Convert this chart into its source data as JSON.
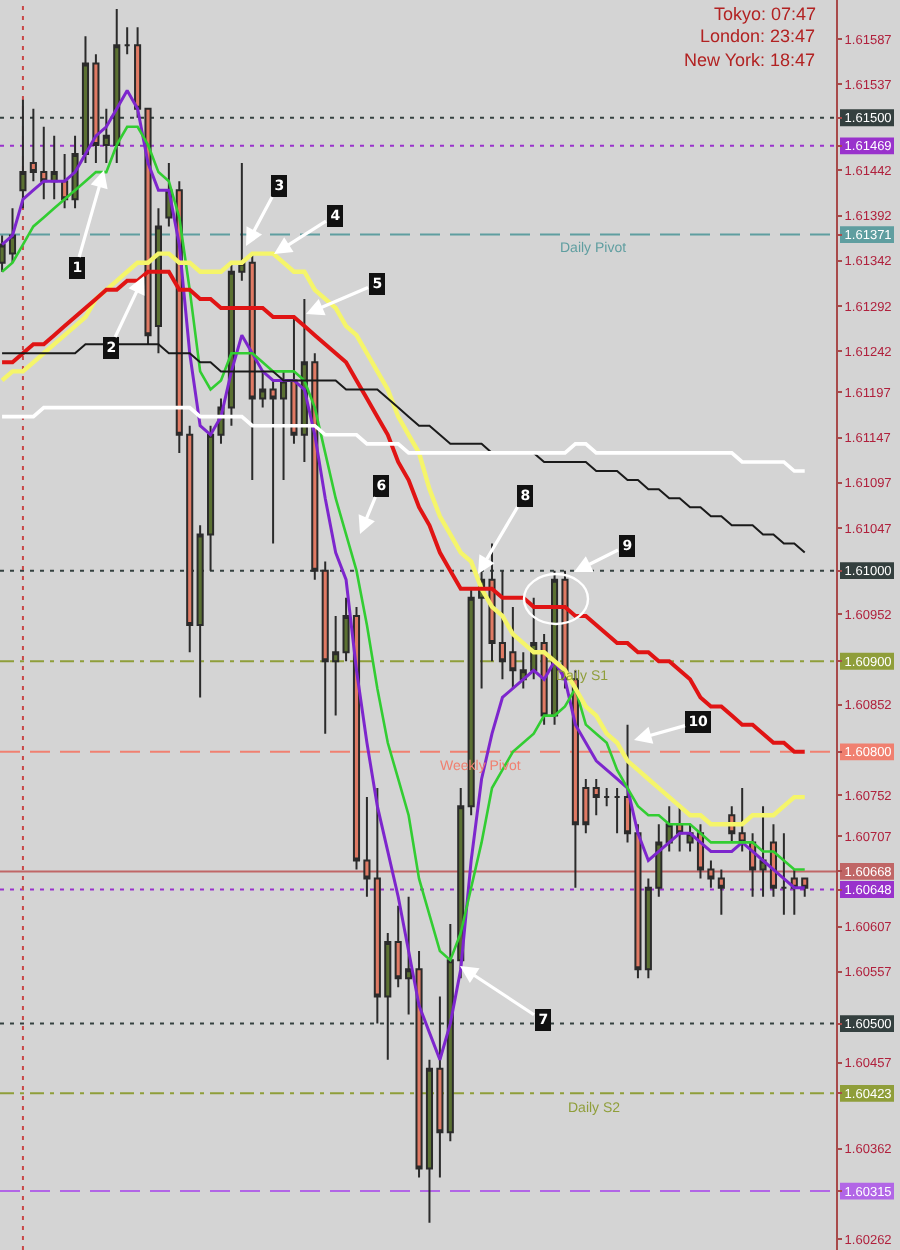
{
  "chart_data": {
    "type": "candlestick",
    "categories": [
      null,
      null,
      null,
      null,
      null,
      null,
      null,
      null,
      null,
      null,
      null,
      null,
      null,
      null,
      null,
      null,
      null,
      null,
      null,
      null,
      null,
      null,
      null,
      null,
      null,
      null,
      null,
      null,
      null,
      null,
      null,
      null,
      null,
      null,
      null,
      null,
      null,
      null,
      null,
      null,
      null,
      null,
      null,
      null,
      null,
      null,
      null,
      null,
      null,
      null,
      null,
      null,
      null,
      null,
      null,
      null,
      null,
      null,
      null,
      null,
      null,
      null,
      null,
      null,
      null,
      null,
      null,
      null,
      null,
      null,
      null,
      null,
      null,
      null,
      null,
      null,
      null,
      null
    ],
    "ohlc": [
      [
        1.6134,
        1.6137,
        1.6133,
        1.6136
      ],
      [
        1.6135,
        1.614,
        1.6134,
        1.6137
      ],
      [
        1.6142,
        1.6152,
        1.614,
        1.6144
      ],
      [
        1.6145,
        1.6151,
        1.6143,
        1.6144
      ],
      [
        1.6144,
        1.6149,
        1.6141,
        1.6143
      ],
      [
        1.6143,
        1.6148,
        1.6141,
        1.6144
      ],
      [
        1.6143,
        1.6146,
        1.614,
        1.6141
      ],
      [
        1.6141,
        1.6148,
        1.614,
        1.6146
      ],
      [
        1.6146,
        1.6159,
        1.6145,
        1.6156
      ],
      [
        1.6156,
        1.6157,
        1.6145,
        1.6147
      ],
      [
        1.6147,
        1.6151,
        1.6145,
        1.6148
      ],
      [
        1.6147,
        1.6162,
        1.6145,
        1.6158
      ],
      [
        1.6158,
        1.616,
        1.6157,
        1.6158
      ],
      [
        1.6158,
        1.616,
        1.615,
        1.6151
      ],
      [
        1.6151,
        1.6151,
        1.6125,
        1.6126
      ],
      [
        1.6127,
        1.614,
        1.6124,
        1.6138
      ],
      [
        1.6139,
        1.6145,
        1.6138,
        1.6142
      ],
      [
        1.6142,
        1.6143,
        1.6113,
        1.6115
      ],
      [
        1.6115,
        1.6116,
        1.6091,
        1.6094
      ],
      [
        1.6094,
        1.6105,
        1.6086,
        1.6104
      ],
      [
        1.6104,
        1.6116,
        1.61,
        1.6115
      ],
      [
        1.6115,
        1.6119,
        1.6114,
        1.6118
      ],
      [
        1.6118,
        1.6134,
        1.6116,
        1.6133
      ],
      [
        1.6133,
        1.6145,
        1.6132,
        1.6134
      ],
      [
        1.6134,
        1.6135,
        1.611,
        1.6119
      ],
      [
        1.6119,
        1.6122,
        1.6118,
        1.612
      ],
      [
        1.612,
        1.6121,
        1.6103,
        1.6119
      ],
      [
        1.6119,
        1.6122,
        1.611,
        1.6121
      ],
      [
        1.6121,
        1.6128,
        1.6114,
        1.6115
      ],
      [
        1.6115,
        1.613,
        1.6112,
        1.6123
      ],
      [
        1.6123,
        1.6124,
        1.6099,
        1.61
      ],
      [
        1.61,
        1.6101,
        1.6082,
        1.609
      ],
      [
        1.609,
        1.6095,
        1.6084,
        1.6091
      ],
      [
        1.6091,
        1.6097,
        1.609,
        1.6095
      ],
      [
        1.6095,
        1.6096,
        1.6067,
        1.6068
      ],
      [
        1.6068,
        1.6075,
        1.6064,
        1.6066
      ],
      [
        1.6066,
        1.6076,
        1.605,
        1.6053
      ],
      [
        1.6053,
        1.606,
        1.6046,
        1.6059
      ],
      [
        1.6059,
        1.6063,
        1.6054,
        1.6055
      ],
      [
        1.6055,
        1.6064,
        1.6051,
        1.6056
      ],
      [
        1.6056,
        1.6058,
        1.6033,
        1.6034
      ],
      [
        1.6034,
        1.6046,
        1.6028,
        1.6045
      ],
      [
        1.6045,
        1.6053,
        1.6033,
        1.6038
      ],
      [
        1.6038,
        1.6061,
        1.6037,
        1.6057
      ],
      [
        1.6057,
        1.6076,
        1.6055,
        1.6074
      ],
      [
        1.6074,
        1.6098,
        1.6073,
        1.6097
      ],
      [
        1.6097,
        1.61,
        1.6087,
        1.6099
      ],
      [
        1.6099,
        1.6103,
        1.609,
        1.6092
      ],
      [
        1.6092,
        1.61,
        1.6088,
        1.609
      ],
      [
        1.6091,
        1.6096,
        1.6087,
        1.6089
      ],
      [
        1.6088,
        1.6091,
        1.6087,
        1.6089
      ],
      [
        1.6089,
        1.6097,
        1.6088,
        1.6092
      ],
      [
        1.6092,
        1.6093,
        1.6083,
        1.6084
      ],
      [
        1.6084,
        1.61,
        1.6083,
        1.6099
      ],
      [
        1.6099,
        1.61,
        1.6087,
        1.6088
      ],
      [
        1.6088,
        1.6089,
        1.6065,
        1.6072
      ],
      [
        1.6076,
        1.6077,
        1.6071,
        1.6072
      ],
      [
        1.6076,
        1.6077,
        1.6073,
        1.6075
      ],
      [
        1.6075,
        1.6076,
        1.6074,
        1.6075
      ],
      [
        1.6075,
        1.6076,
        1.6071,
        1.6075
      ],
      [
        1.6075,
        1.6083,
        1.607,
        1.6071
      ],
      [
        1.6071,
        1.6072,
        1.6055,
        1.6056
      ],
      [
        1.6056,
        1.6066,
        1.6055,
        1.6065
      ],
      [
        1.6065,
        1.6072,
        1.6064,
        1.607
      ],
      [
        1.607,
        1.6074,
        1.6069,
        1.6072
      ],
      [
        1.6072,
        1.6074,
        1.6069,
        1.6071
      ],
      [
        1.607,
        1.6072,
        1.6069,
        1.6071
      ],
      [
        1.6071,
        1.6072,
        1.6066,
        1.6067
      ],
      [
        1.6067,
        1.6068,
        1.6065,
        1.6066
      ],
      [
        1.6066,
        1.6067,
        1.6062,
        1.6065
      ],
      [
        1.6073,
        1.6074,
        1.607,
        1.6071
      ],
      [
        1.6071,
        1.6076,
        1.6069,
        1.607
      ],
      [
        1.607,
        1.6071,
        1.6064,
        1.6067
      ],
      [
        1.6067,
        1.6074,
        1.6064,
        1.6068
      ],
      [
        1.607,
        1.6072,
        1.6064,
        1.6065
      ],
      [
        1.6065,
        1.6071,
        1.6062,
        1.6065
      ],
      [
        1.6066,
        1.6067,
        1.6062,
        1.6065
      ],
      [
        1.6066,
        1.6066,
        1.6064,
        1.6065
      ]
    ],
    "colors": [
      "#5b7132",
      "#5b7132",
      "#5b7132",
      "#e07a64",
      "#e07a64",
      "#5b7132",
      "#e07a64",
      "#5b7132",
      "#5b7132",
      "#e07a64",
      "#5b7132",
      "#5b7132",
      "#2b2b2b",
      "#e07a64",
      "#e07a64",
      "#5b7132",
      "#5b7132",
      "#e07a64",
      "#e07a64",
      "#5b7132",
      "#5b7132",
      "#5b7132",
      "#5b7132",
      "#5b7132",
      "#e07a64",
      "#5b7132",
      "#e07a64",
      "#5b7132",
      "#e07a64",
      "#5b7132",
      "#e07a64",
      "#e07a64",
      "#5b7132",
      "#5b7132",
      "#e07a64",
      "#e07a64",
      "#e07a64",
      "#5b7132",
      "#e07a64",
      "#5b7132",
      "#e07a64",
      "#5b7132",
      "#e07a64",
      "#5b7132",
      "#5b7132",
      "#5b7132",
      "#5b7132",
      "#e07a64",
      "#e07a64",
      "#e07a64",
      "#5b7132",
      "#5b7132",
      "#e07a64",
      "#5b7132",
      "#e07a64",
      "#e07a64",
      "#e07a64",
      "#e07a64",
      "#2b2b2b",
      "#2b2b2b",
      "#e07a64",
      "#e07a64",
      "#5b7132",
      "#5b7132",
      "#5b7132",
      "#e07a64",
      "#5b7132",
      "#e07a64",
      "#e07a64",
      "#e07a64",
      "#e07a64",
      "#e07a64",
      "#e07a64",
      "#5b7132",
      "#e07a64",
      "#2b2b2b",
      "#e07a64",
      "#e07a64"
    ],
    "series": [
      {
        "type": "line",
        "color": "#7d26cd",
        "values": [
          1.6136,
          1.6137,
          1.6141,
          1.6142,
          1.6143,
          1.6143,
          1.6143,
          1.6144,
          1.6146,
          1.6148,
          1.6149,
          1.6151,
          1.6153,
          1.6151,
          1.6145,
          1.6142,
          1.6142,
          1.6136,
          1.6124,
          1.6116,
          1.6115,
          1.6117,
          1.6122,
          1.6126,
          1.6124,
          1.6122,
          1.6121,
          1.6121,
          1.6121,
          1.612,
          1.6115,
          1.6108,
          1.6102,
          1.6099,
          1.6089,
          1.6081,
          1.6074,
          1.6069,
          1.6064,
          1.6058,
          1.6052,
          1.6049,
          1.6046,
          1.605,
          1.6056,
          1.6068,
          1.6077,
          1.6082,
          1.6086,
          1.6087,
          1.6088,
          1.6089,
          1.6088,
          1.609,
          1.6088,
          1.6083,
          1.6081,
          1.6079,
          1.6078,
          1.6077,
          1.6076,
          1.6071,
          1.6068,
          1.6069,
          1.607,
          1.6071,
          1.6071,
          1.607,
          1.6069,
          1.6069,
          1.6069,
          1.607,
          1.6069,
          1.6068,
          1.6067,
          1.6066,
          1.6065,
          1.6065
        ]
      },
      {
        "type": "line",
        "color": "#32cd32",
        "values": [
          1.6133,
          1.6134,
          1.6136,
          1.6138,
          1.6139,
          1.614,
          1.6141,
          1.6142,
          1.6143,
          1.6144,
          1.6144,
          1.6147,
          1.6149,
          1.6149,
          1.6147,
          1.6144,
          1.6143,
          1.6139,
          1.6131,
          1.6122,
          1.612,
          1.6121,
          1.6124,
          1.6124,
          1.6124,
          1.6123,
          1.6122,
          1.6122,
          1.6122,
          1.6121,
          1.6118,
          1.6113,
          1.6108,
          1.6104,
          1.61,
          1.6094,
          1.6087,
          1.6081,
          1.6077,
          1.6073,
          1.6066,
          1.6062,
          1.6058,
          1.6057,
          1.606,
          1.6065,
          1.607,
          1.6076,
          1.6078,
          1.608,
          1.6081,
          1.6082,
          1.6084,
          1.6084,
          1.6085,
          1.6087,
          1.6083,
          1.6082,
          1.6081,
          1.6078,
          1.6076,
          1.6074,
          1.6073,
          1.6073,
          1.6072,
          1.6072,
          1.6072,
          1.6071,
          1.607,
          1.607,
          1.607,
          1.607,
          1.607,
          1.6069,
          1.6069,
          1.6068,
          1.6067,
          1.6067
        ]
      },
      {
        "type": "line",
        "color": "#f5f56a",
        "values": [
          1.6121,
          1.6122,
          1.6122,
          1.6123,
          1.6124,
          1.6125,
          1.6126,
          1.6127,
          1.6128,
          1.613,
          1.6131,
          1.6132,
          1.6133,
          1.6134,
          1.6134,
          1.6135,
          1.6135,
          1.6134,
          1.6134,
          1.6133,
          1.6133,
          1.6133,
          1.6134,
          1.6134,
          1.6135,
          1.6135,
          1.6135,
          1.6134,
          1.6133,
          1.6133,
          1.6131,
          1.613,
          1.6129,
          1.6127,
          1.6126,
          1.6124,
          1.6122,
          1.612,
          1.6117,
          1.6115,
          1.6113,
          1.6109,
          1.6106,
          1.6104,
          1.6102,
          1.6101,
          1.6098,
          1.6096,
          1.6095,
          1.6093,
          1.6092,
          1.6091,
          1.6091,
          1.609,
          1.6089,
          1.6087,
          1.6085,
          1.6084,
          1.6082,
          1.6081,
          1.6079,
          1.6078,
          1.6077,
          1.6076,
          1.6075,
          1.6074,
          1.6073,
          1.6073,
          1.6072,
          1.6072,
          1.6072,
          1.6072,
          1.6073,
          1.6073,
          1.6073,
          1.6074,
          1.6075,
          1.6075
        ]
      },
      {
        "type": "line",
        "color": "#e01414",
        "values": [
          1.6123,
          1.6123,
          1.6124,
          1.6125,
          1.6125,
          1.6126,
          1.6127,
          1.6128,
          1.6129,
          1.613,
          1.6131,
          1.6131,
          1.6132,
          1.6132,
          1.6133,
          1.6133,
          1.6133,
          1.6131,
          1.6131,
          1.613,
          1.613,
          1.6129,
          1.6129,
          1.6129,
          1.6129,
          1.6129,
          1.6128,
          1.6128,
          1.6128,
          1.6127,
          1.6126,
          1.6125,
          1.6124,
          1.6123,
          1.6121,
          1.6119,
          1.6117,
          1.6115,
          1.6112,
          1.611,
          1.6107,
          1.6105,
          1.6102,
          1.61,
          1.6098,
          1.6098,
          1.6098,
          1.6098,
          1.6097,
          1.6097,
          1.6097,
          1.6096,
          1.6096,
          1.6096,
          1.6096,
          1.6095,
          1.6095,
          1.6094,
          1.6093,
          1.6092,
          1.6092,
          1.6091,
          1.6091,
          1.609,
          1.609,
          1.6089,
          1.6088,
          1.6086,
          1.6085,
          1.6085,
          1.6084,
          1.6083,
          1.6083,
          1.6082,
          1.6081,
          1.6081,
          1.608,
          1.608
        ]
      },
      {
        "type": "line",
        "color": "#1a1a1a",
        "values": [
          1.6124,
          1.6124,
          1.6124,
          1.6124,
          1.6124,
          1.6124,
          1.6124,
          1.6124,
          1.6125,
          1.6125,
          1.6125,
          1.6125,
          1.6125,
          1.6125,
          1.6125,
          1.6125,
          1.6124,
          1.6124,
          1.6124,
          1.6123,
          1.6123,
          1.6122,
          1.6122,
          1.6122,
          1.6122,
          1.6122,
          1.6122,
          1.6121,
          1.6121,
          1.6121,
          1.6121,
          1.6121,
          1.6121,
          1.612,
          1.612,
          1.612,
          1.612,
          1.6119,
          1.6118,
          1.6117,
          1.6116,
          1.6116,
          1.6115,
          1.6114,
          1.6114,
          1.6114,
          1.6114,
          1.6113,
          1.6113,
          1.6113,
          1.6113,
          1.6113,
          1.6112,
          1.6112,
          1.6112,
          1.6112,
          1.6112,
          1.6111,
          1.6111,
          1.6111,
          1.611,
          1.611,
          1.6109,
          1.6109,
          1.6108,
          1.6108,
          1.6107,
          1.6107,
          1.6106,
          1.6106,
          1.6105,
          1.6105,
          1.6105,
          1.6104,
          1.6104,
          1.6103,
          1.6103,
          1.6102
        ]
      },
      {
        "type": "line",
        "color": "#ffffff",
        "values": [
          1.6117,
          1.6117,
          1.6117,
          1.6117,
          1.6118,
          1.6118,
          1.6118,
          1.6118,
          1.6118,
          1.6118,
          1.6118,
          1.6118,
          1.6118,
          1.6118,
          1.6118,
          1.6118,
          1.6118,
          1.6118,
          1.6118,
          1.6117,
          1.6117,
          1.6117,
          1.6117,
          1.6117,
          1.6116,
          1.6116,
          1.6116,
          1.6116,
          1.6116,
          1.6116,
          1.6116,
          1.6115,
          1.6115,
          1.6115,
          1.6115,
          1.6114,
          1.6114,
          1.6114,
          1.6114,
          1.6113,
          1.6113,
          1.6113,
          1.6113,
          1.6113,
          1.6113,
          1.6113,
          1.6113,
          1.6113,
          1.6113,
          1.6113,
          1.6113,
          1.6113,
          1.6113,
          1.6113,
          1.6113,
          1.6114,
          1.6114,
          1.6113,
          1.6113,
          1.6113,
          1.6113,
          1.6113,
          1.6113,
          1.6113,
          1.6113,
          1.6113,
          1.6113,
          1.6113,
          1.6113,
          1.6113,
          1.6113,
          1.6112,
          1.6112,
          1.6112,
          1.6112,
          1.6112,
          1.6111,
          1.6111
        ]
      }
    ],
    "ylim": [
      1.6025,
      1.6163
    ],
    "yticks": [
      1.61587,
      1.61537,
      {
        "value": 1.615,
        "label": "1.61500"
      },
      1.61469,
      1.61442,
      1.61392,
      1.61371,
      1.61342,
      1.61292,
      1.61242,
      1.61197,
      1.61147,
      1.61097,
      1.61047,
      {
        "value": 1.61,
        "label": "1.61000"
      },
      1.60952,
      {
        "value": 1.609,
        "label": "1.60900"
      },
      1.60852,
      {
        "value": 1.608,
        "label": "1.60800"
      },
      1.60752,
      1.60707,
      1.60668,
      1.60648,
      1.60607,
      1.60557,
      {
        "value": 1.605,
        "label": "1.60500"
      },
      1.60457,
      1.60423,
      1.60362,
      1.60315,
      1.60262
    ],
    "tick_labels": "y",
    "ref_lines": [
      {
        "axis": "y",
        "value": 1.615,
        "color": "#34403f",
        "line_style": "dotted"
      },
      {
        "axis": "y",
        "value": 1.61469,
        "color": "#9932cc",
        "line_style": "dotted"
      },
      {
        "axis": "y",
        "value": 1.61371,
        "color": "#5f9ea0",
        "line_style": "dashed",
        "label": "Daily Pivot"
      },
      {
        "axis": "y",
        "value": 1.61,
        "color": "#34403f",
        "line_style": "dotted"
      },
      {
        "axis": "y",
        "value": 1.609,
        "color": "#8f9e3a",
        "line_style": "dashdot",
        "label": "Daily S1"
      },
      {
        "axis": "y",
        "value": 1.608,
        "color": "#f08070",
        "line_style": "dashed",
        "label": "Weekly Pivot"
      },
      {
        "axis": "y",
        "value": 1.60668,
        "color": "#c06666",
        "line_style": "solid"
      },
      {
        "axis": "y",
        "value": 1.60648,
        "color": "#9932cc",
        "line_style": "dotted"
      },
      {
        "axis": "y",
        "value": 1.605,
        "color": "#34403f",
        "line_style": "dotted"
      },
      {
        "axis": "y",
        "value": 1.60423,
        "color": "#8f9e3a",
        "line_style": "dashdot",
        "label": "Daily S2"
      },
      {
        "axis": "y",
        "value": 1.60315,
        "color": "#b266e6",
        "line_style": "dashed"
      }
    ],
    "annotations": [
      "Tokyo: 07:47",
      "London: 23:47",
      "New York: 18:47",
      "1",
      "2",
      "3",
      "4",
      "5",
      "6",
      "7",
      "8",
      "9",
      "10"
    ]
  }
}
